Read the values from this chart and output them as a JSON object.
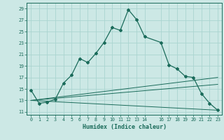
{
  "title": "",
  "xlabel": "Humidex (Indice chaleur)",
  "bg_color": "#cce8e5",
  "line_color": "#1a6b5a",
  "grid_color": "#aad4d0",
  "xlim": [
    -0.5,
    23.5
  ],
  "ylim": [
    10.5,
    30.0
  ],
  "xticks": [
    0,
    1,
    2,
    3,
    4,
    5,
    6,
    7,
    8,
    9,
    10,
    11,
    12,
    13,
    14,
    16,
    17,
    18,
    19,
    20,
    21,
    22,
    23
  ],
  "yticks": [
    11,
    13,
    15,
    17,
    19,
    21,
    23,
    25,
    27,
    29
  ],
  "series1_x": [
    0,
    1,
    2,
    3,
    4,
    5,
    6,
    7,
    8,
    9,
    10,
    11,
    12,
    13,
    14,
    16,
    17,
    18,
    19,
    20,
    21,
    22,
    23
  ],
  "series1_y": [
    14.8,
    12.5,
    12.7,
    13.2,
    16.0,
    17.4,
    20.3,
    19.6,
    21.2,
    23.1,
    25.7,
    25.2,
    28.8,
    27.1,
    24.1,
    23.1,
    19.2,
    18.5,
    17.2,
    17.0,
    14.2,
    12.5,
    11.3
  ],
  "series2_x": [
    0,
    23
  ],
  "series2_y": [
    13.0,
    11.3
  ],
  "series3_x": [
    0,
    23
  ],
  "series3_y": [
    13.0,
    15.8
  ],
  "series4_x": [
    0,
    23
  ],
  "series4_y": [
    13.0,
    17.0
  ]
}
